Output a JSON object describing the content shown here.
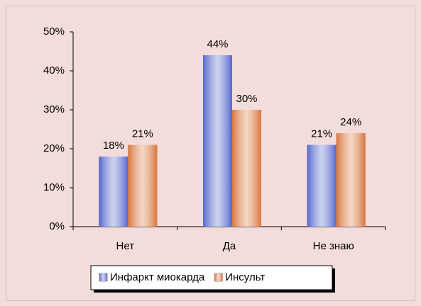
{
  "chart_data": {
    "type": "bar",
    "categories": [
      "Нет",
      "Да",
      "Не знаю"
    ],
    "series": [
      {
        "name": "Инфаркт миокарда",
        "color": "#5566cc",
        "values": [
          18,
          44,
          21
        ],
        "value_labels": [
          "18%",
          "44%",
          "21%"
        ]
      },
      {
        "name": "Инсульт",
        "color": "#d8763e",
        "values": [
          21,
          30,
          24
        ],
        "value_labels": [
          "21%",
          "30%",
          "24%"
        ]
      }
    ],
    "ylim": [
      0,
      50
    ],
    "yticks": [
      {
        "value": 0,
        "label": "0%"
      },
      {
        "value": 10,
        "label": "10%"
      },
      {
        "value": 20,
        "label": "20%"
      },
      {
        "value": 30,
        "label": "30%"
      },
      {
        "value": 40,
        "label": "40%"
      },
      {
        "value": 50,
        "label": "50%"
      }
    ],
    "legend": "bottom"
  }
}
